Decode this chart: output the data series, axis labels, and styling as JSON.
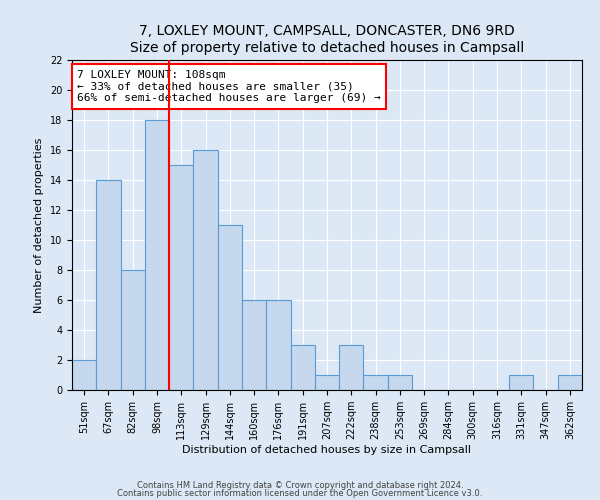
{
  "title": "7, LOXLEY MOUNT, CAMPSALL, DONCASTER, DN6 9RD",
  "subtitle": "Size of property relative to detached houses in Campsall",
  "xlabel": "Distribution of detached houses by size in Campsall",
  "ylabel": "Number of detached properties",
  "bar_labels": [
    "51sqm",
    "67sqm",
    "82sqm",
    "98sqm",
    "113sqm",
    "129sqm",
    "144sqm",
    "160sqm",
    "176sqm",
    "191sqm",
    "207sqm",
    "222sqm",
    "238sqm",
    "253sqm",
    "269sqm",
    "284sqm",
    "300sqm",
    "316sqm",
    "331sqm",
    "347sqm",
    "362sqm"
  ],
  "bar_values": [
    2,
    14,
    8,
    18,
    15,
    16,
    11,
    6,
    6,
    3,
    1,
    3,
    1,
    1,
    0,
    0,
    0,
    0,
    1,
    0,
    1
  ],
  "bar_color": "#c5d8ed",
  "bar_edge_color": "#5b9bd5",
  "red_line_index": 4,
  "ylim": [
    0,
    22
  ],
  "yticks": [
    0,
    2,
    4,
    6,
    8,
    10,
    12,
    14,
    16,
    18,
    20,
    22
  ],
  "annotation_text": "7 LOXLEY MOUNT: 108sqm\n← 33% of detached houses are smaller (35)\n66% of semi-detached houses are larger (69) →",
  "footnote1": "Contains HM Land Registry data © Crown copyright and database right 2024.",
  "footnote2": "Contains public sector information licensed under the Open Government Licence v3.0.",
  "bg_color": "#dce8f5",
  "plot_bg_color": "#dce8f5",
  "title_fontsize": 10,
  "subtitle_fontsize": 9,
  "axis_label_fontsize": 8,
  "tick_fontsize": 7,
  "annotation_fontsize": 8,
  "footnote_fontsize": 6
}
